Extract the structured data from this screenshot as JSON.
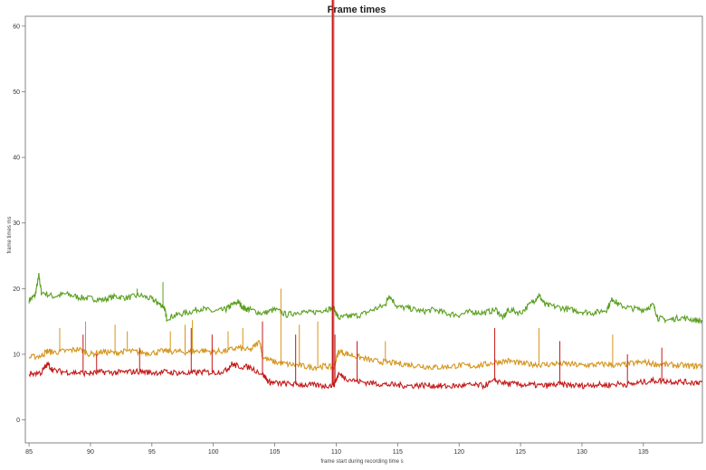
{
  "chart_data": {
    "type": "line",
    "title": "Frame times",
    "xlabel": "frame start during recording time s",
    "ylabel": "frame times ms",
    "xlim": [
      84.7,
      139.8
    ],
    "ylim": [
      -3.5,
      61.5
    ],
    "xticks": [
      85,
      90,
      95,
      100,
      105,
      110,
      115,
      120,
      125,
      130,
      135
    ],
    "yticks": [
      0,
      10,
      20,
      30,
      40,
      50,
      60
    ],
    "grid": false,
    "legend": "none",
    "series": [
      {
        "color": "#5aa020",
        "points": [
          [
            85,
            18.2
          ],
          [
            85.5,
            19.0
          ],
          [
            85.8,
            22.0
          ],
          [
            86,
            19.5
          ],
          [
            87,
            18.8
          ],
          [
            88,
            19.2
          ],
          [
            89,
            18.7
          ],
          [
            90,
            18.5
          ],
          [
            91,
            18.3
          ],
          [
            92,
            18.8
          ],
          [
            93,
            18.6
          ],
          [
            94,
            19.0
          ],
          [
            95,
            18.4
          ],
          [
            95.5,
            17.8
          ],
          [
            96,
            17.2
          ],
          [
            96.2,
            15.5
          ],
          [
            97,
            16.0
          ],
          [
            98,
            16.4
          ],
          [
            99,
            17.0
          ],
          [
            100,
            16.5
          ],
          [
            101,
            16.8
          ],
          [
            101.5,
            17.5
          ],
          [
            102,
            18.0
          ],
          [
            102.5,
            17.0
          ],
          [
            103,
            16.8
          ],
          [
            104,
            16.2
          ],
          [
            105,
            16.8
          ],
          [
            106,
            16.0
          ],
          [
            107,
            16.5
          ],
          [
            108,
            16.3
          ],
          [
            109,
            16.8
          ],
          [
            109.8,
            17.0
          ],
          [
            110.2,
            15.5
          ],
          [
            111,
            15.8
          ],
          [
            112,
            16.0
          ],
          [
            113,
            16.8
          ],
          [
            114,
            17.5
          ],
          [
            114.3,
            19.0
          ],
          [
            115,
            17.2
          ],
          [
            116,
            17.0
          ],
          [
            117,
            16.5
          ],
          [
            118,
            16.8
          ],
          [
            119,
            16.2
          ],
          [
            120,
            16.0
          ],
          [
            121,
            16.5
          ],
          [
            122,
            16.3
          ],
          [
            123,
            16.8
          ],
          [
            123.6,
            15.5
          ],
          [
            124,
            16.8
          ],
          [
            125,
            16.3
          ],
          [
            126,
            18.0
          ],
          [
            126.5,
            19.0
          ],
          [
            127,
            17.5
          ],
          [
            128,
            17.2
          ],
          [
            129,
            16.8
          ],
          [
            130,
            16.5
          ],
          [
            131,
            16.3
          ],
          [
            132,
            16.8
          ],
          [
            132.5,
            18.5
          ],
          [
            133,
            17.5
          ],
          [
            134,
            17.0
          ],
          [
            135,
            16.8
          ],
          [
            135.8,
            17.5
          ],
          [
            136.2,
            15.5
          ],
          [
            137,
            15.2
          ],
          [
            138,
            15.6
          ],
          [
            139,
            15.3
          ],
          [
            139.8,
            15.0
          ]
        ]
      },
      {
        "color": "#d4941c",
        "points": [
          [
            85,
            9.5
          ],
          [
            86,
            9.8
          ],
          [
            86.5,
            10.5
          ],
          [
            87,
            10.3
          ],
          [
            88,
            10.5
          ],
          [
            89,
            10.8
          ],
          [
            90,
            10.0
          ],
          [
            91,
            10.4
          ],
          [
            92,
            10.2
          ],
          [
            93,
            10.5
          ],
          [
            94,
            10.3
          ],
          [
            95,
            10.2
          ],
          [
            96,
            10.5
          ],
          [
            97,
            10.4
          ],
          [
            98,
            10.3
          ],
          [
            99,
            10.6
          ],
          [
            100,
            10.4
          ],
          [
            101,
            10.5
          ],
          [
            102,
            11.0
          ],
          [
            103,
            10.6
          ],
          [
            103.8,
            12.0
          ],
          [
            104,
            9.5
          ],
          [
            105,
            8.8
          ],
          [
            106,
            8.5
          ],
          [
            107,
            8.3
          ],
          [
            108,
            8.0
          ],
          [
            109,
            8.2
          ],
          [
            109.8,
            8.0
          ],
          [
            110.2,
            10.5
          ],
          [
            111,
            10.0
          ],
          [
            112,
            9.5
          ],
          [
            113,
            9.0
          ],
          [
            114,
            8.8
          ],
          [
            115,
            8.6
          ],
          [
            116,
            8.4
          ],
          [
            117,
            8.2
          ],
          [
            118,
            8.0
          ],
          [
            119,
            8.1
          ],
          [
            120,
            8.3
          ],
          [
            121,
            8.2
          ],
          [
            122,
            8.4
          ],
          [
            123,
            8.8
          ],
          [
            124,
            9.0
          ],
          [
            125,
            8.6
          ],
          [
            126,
            8.5
          ],
          [
            127,
            8.4
          ],
          [
            128,
            8.6
          ],
          [
            129,
            8.5
          ],
          [
            130,
            8.3
          ],
          [
            131,
            8.4
          ],
          [
            132,
            8.5
          ],
          [
            133,
            8.3
          ],
          [
            134,
            8.6
          ],
          [
            135,
            8.8
          ],
          [
            136,
            8.5
          ],
          [
            137,
            8.4
          ],
          [
            138,
            8.3
          ],
          [
            139,
            8.2
          ],
          [
            139.8,
            8.3
          ]
        ]
      },
      {
        "color": "#c41818",
        "points": [
          [
            85,
            7.0
          ],
          [
            86,
            7.2
          ],
          [
            86.5,
            8.5
          ],
          [
            87,
            7.5
          ],
          [
            88,
            7.3
          ],
          [
            89,
            7.2
          ],
          [
            90,
            7.1
          ],
          [
            91,
            7.3
          ],
          [
            92,
            7.2
          ],
          [
            93,
            7.3
          ],
          [
            94,
            7.4
          ],
          [
            95,
            7.2
          ],
          [
            96,
            7.3
          ],
          [
            97,
            7.2
          ],
          [
            98,
            7.1
          ],
          [
            99,
            7.3
          ],
          [
            100,
            7.2
          ],
          [
            101,
            7.5
          ],
          [
            101.5,
            8.5
          ],
          [
            102,
            8.2
          ],
          [
            103,
            8.0
          ],
          [
            104,
            7.0
          ],
          [
            104.5,
            5.8
          ],
          [
            105,
            5.6
          ],
          [
            106,
            5.5
          ],
          [
            107,
            5.4
          ],
          [
            108,
            5.3
          ],
          [
            109,
            5.2
          ],
          [
            109.8,
            5.3
          ],
          [
            110.2,
            7.0
          ],
          [
            111,
            6.2
          ],
          [
            112,
            5.8
          ],
          [
            113,
            5.6
          ],
          [
            114,
            5.4
          ],
          [
            115,
            5.3
          ],
          [
            116,
            5.2
          ],
          [
            117,
            5.3
          ],
          [
            118,
            5.2
          ],
          [
            119,
            5.1
          ],
          [
            120,
            5.2
          ],
          [
            121,
            5.3
          ],
          [
            122,
            5.2
          ],
          [
            123,
            6.0
          ],
          [
            124,
            5.5
          ],
          [
            125,
            5.4
          ],
          [
            126,
            5.3
          ],
          [
            127,
            5.2
          ],
          [
            128,
            5.4
          ],
          [
            129,
            5.3
          ],
          [
            130,
            5.2
          ],
          [
            131,
            5.4
          ],
          [
            132,
            5.3
          ],
          [
            133,
            5.5
          ],
          [
            134,
            5.4
          ],
          [
            135,
            5.8
          ],
          [
            136,
            6.0
          ],
          [
            137,
            5.9
          ],
          [
            138,
            5.8
          ],
          [
            139,
            5.7
          ],
          [
            139.8,
            5.8
          ]
        ]
      }
    ],
    "spikes": [
      {
        "color": "#5aa020",
        "x": 93.8,
        "y": 20.0
      },
      {
        "color": "#5aa020",
        "x": 95.9,
        "y": 21.0
      },
      {
        "color": "#d4941c",
        "x": 87.5,
        "y": 14.0
      },
      {
        "color": "#d4941c",
        "x": 89.6,
        "y": 15.0
      },
      {
        "color": "#d4941c",
        "x": 92.0,
        "y": 14.5
      },
      {
        "color": "#d4941c",
        "x": 93.0,
        "y": 13.5
      },
      {
        "color": "#d4941c",
        "x": 96.5,
        "y": 13.5
      },
      {
        "color": "#d4941c",
        "x": 97.7,
        "y": 14.5
      },
      {
        "color": "#d4941c",
        "x": 98.3,
        "y": 15.2
      },
      {
        "color": "#d4941c",
        "x": 101.2,
        "y": 13.5
      },
      {
        "color": "#d4941c",
        "x": 102.4,
        "y": 14.0
      },
      {
        "color": "#d4941c",
        "x": 105.5,
        "y": 20.0
      },
      {
        "color": "#d4941c",
        "x": 107.0,
        "y": 14.5
      },
      {
        "color": "#d4941c",
        "x": 108.5,
        "y": 15.0
      },
      {
        "color": "#d4941c",
        "x": 114.0,
        "y": 12.0
      },
      {
        "color": "#d4941c",
        "x": 126.5,
        "y": 14.0
      },
      {
        "color": "#d4941c",
        "x": 132.5,
        "y": 13.0
      },
      {
        "color": "#c41818",
        "x": 89.4,
        "y": 13.0
      },
      {
        "color": "#c41818",
        "x": 90.5,
        "y": 10.0
      },
      {
        "color": "#c41818",
        "x": 94.0,
        "y": 11.0
      },
      {
        "color": "#c41818",
        "x": 98.2,
        "y": 14.0
      },
      {
        "color": "#c41818",
        "x": 99.9,
        "y": 13.0
      },
      {
        "color": "#c41818",
        "x": 104.0,
        "y": 15.0
      },
      {
        "color": "#c41818",
        "x": 106.7,
        "y": 13.0
      },
      {
        "color": "#c41818",
        "x": 109.9,
        "y": 13.0
      },
      {
        "color": "#c41818",
        "x": 111.7,
        "y": 12.0
      },
      {
        "color": "#c41818",
        "x": 122.9,
        "y": 14.0
      },
      {
        "color": "#c41818",
        "x": 128.2,
        "y": 12.0
      },
      {
        "color": "#c41818",
        "x": 133.7,
        "y": 10.0
      },
      {
        "color": "#c41818",
        "x": 136.5,
        "y": 11.0
      }
    ],
    "main_spike": {
      "color": "#c41818",
      "x": 109.7,
      "y": 70.0
    }
  }
}
